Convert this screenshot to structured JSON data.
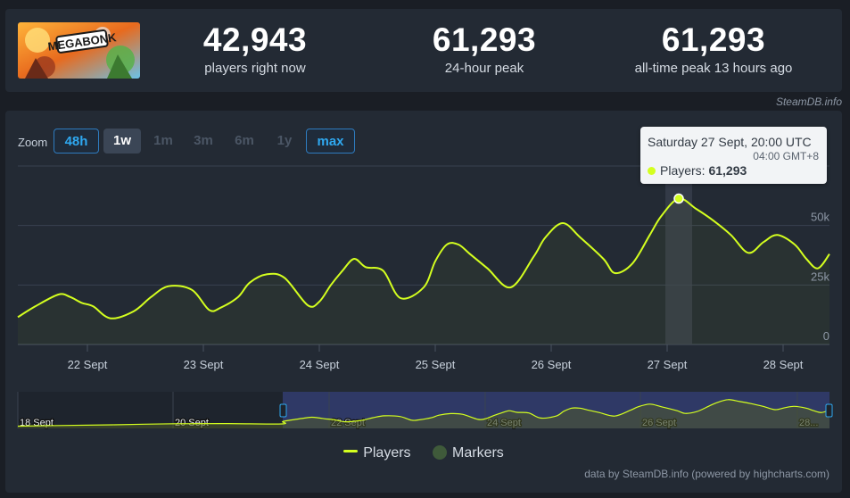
{
  "game": {
    "logo_text": "MEGABONK"
  },
  "stats": [
    {
      "value": "42,943",
      "label": "players right now"
    },
    {
      "value": "61,293",
      "label": "24-hour peak"
    },
    {
      "value": "61,293",
      "label": "all-time peak 13 hours ago"
    }
  ],
  "credit_top": "SteamDB.info",
  "zoom": {
    "label": "Zoom",
    "buttons": [
      "48h",
      "1w",
      "1m",
      "3m",
      "6m",
      "1y",
      "max"
    ],
    "active": "1w"
  },
  "tooltip": {
    "title": "Saturday 27 Sept, 20:00 UTC",
    "subtitle": "04:00 GMT+8",
    "series_label": "Players: ",
    "value": "61,293"
  },
  "legend": {
    "players": "Players",
    "markers": "Markers"
  },
  "credit_bottom": "data by SteamDB.info (powered by highcharts.com)",
  "colors": {
    "line": "#d4ff1f",
    "background": "#232a34",
    "accent": "#2fa8f0"
  },
  "chart_data": {
    "type": "line",
    "title": "",
    "ylabel": "",
    "xlabel": "",
    "ylim": [
      0,
      75000
    ],
    "y_ticks": [
      "0",
      "25k",
      "50k"
    ],
    "y_tick_values": [
      0,
      25000,
      50000
    ],
    "x_ticks": [
      "22 Sept",
      "23 Sept",
      "24 Sept",
      "25 Sept",
      "26 Sept",
      "27 Sept",
      "28 Sept"
    ],
    "x_tick_days": [
      22,
      23,
      24,
      25,
      26,
      27,
      28
    ],
    "x_range_days": [
      21.4,
      28.4
    ],
    "series": [
      {
        "name": "Players",
        "x_days": [
          21.4,
          21.55,
          21.75,
          21.85,
          21.95,
          22.05,
          22.2,
          22.4,
          22.55,
          22.7,
          22.9,
          23.05,
          23.15,
          23.3,
          23.4,
          23.55,
          23.7,
          23.9,
          24.0,
          24.1,
          24.2,
          24.3,
          24.4,
          24.55,
          24.7,
          24.9,
          25.0,
          25.1,
          25.2,
          25.3,
          25.45,
          25.65,
          25.85,
          25.95,
          26.1,
          26.25,
          26.45,
          26.55,
          26.7,
          26.85,
          26.95,
          27.1,
          27.25,
          27.4,
          27.55,
          27.7,
          27.83,
          27.95,
          28.1,
          28.2,
          28.3,
          28.4
        ],
        "values": [
          11500,
          16000,
          21000,
          20000,
          17500,
          16000,
          11000,
          14000,
          20000,
          24500,
          23000,
          14500,
          15500,
          20000,
          26000,
          29500,
          28000,
          16500,
          18000,
          25000,
          31000,
          36000,
          32500,
          31000,
          19500,
          24000,
          35000,
          42000,
          42000,
          38000,
          32000,
          24000,
          37000,
          45000,
          51000,
          45000,
          36000,
          30000,
          34000,
          46000,
          54000,
          61300,
          57000,
          52000,
          46000,
          38500,
          43000,
          46000,
          42000,
          36000,
          32000,
          38000
        ]
      }
    ],
    "navigator": {
      "x_labels": [
        "18 Sept",
        "20 Sept",
        "22 Sept",
        "24 Sept",
        "26 Sept",
        "28..."
      ],
      "selected_range_days": [
        21.4,
        28.4
      ]
    }
  }
}
